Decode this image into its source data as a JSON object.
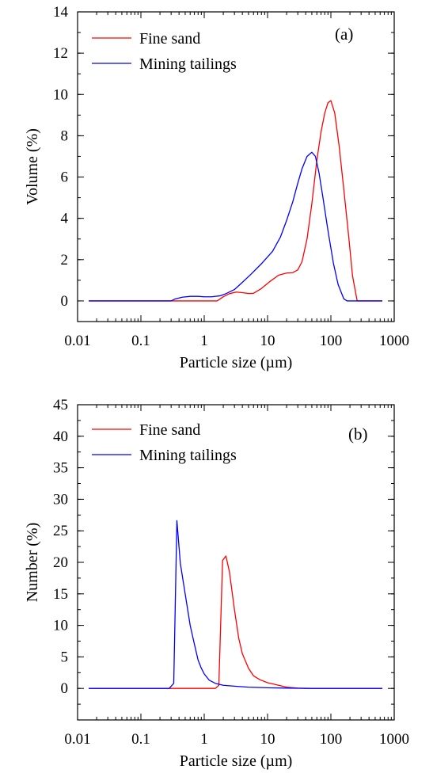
{
  "chart_data": [
    {
      "type": "line",
      "panel_label": "(a)",
      "xlabel": "Particle size (µm)",
      "ylabel": "Volume (%)",
      "x_scale": "log",
      "xlim": [
        0.01,
        1000
      ],
      "ylim": [
        -1,
        14
      ],
      "x_ticks": [
        "0.01",
        "0.1",
        "1",
        "10",
        "100",
        "1000"
      ],
      "y_ticks": [
        "0",
        "2",
        "4",
        "6",
        "8",
        "10",
        "12",
        "14"
      ],
      "legend": "top-left",
      "series": [
        {
          "name": "Fine sand",
          "color": "#ff0000",
          "points": [
            [
              0.015,
              0
            ],
            [
              1.6,
              0
            ],
            [
              2,
              0.2
            ],
            [
              2.5,
              0.35
            ],
            [
              3.2,
              0.43
            ],
            [
              4,
              0.4
            ],
            [
              5,
              0.36
            ],
            [
              6,
              0.37
            ],
            [
              8,
              0.6
            ],
            [
              11,
              0.95
            ],
            [
              15,
              1.25
            ],
            [
              20,
              1.35
            ],
            [
              25,
              1.37
            ],
            [
              30,
              1.5
            ],
            [
              35,
              1.9
            ],
            [
              42,
              3
            ],
            [
              50,
              4.7
            ],
            [
              60,
              6.8
            ],
            [
              70,
              8.2
            ],
            [
              80,
              9.1
            ],
            [
              90,
              9.6
            ],
            [
              100,
              9.7
            ],
            [
              115,
              9.1
            ],
            [
              135,
              7.5
            ],
            [
              160,
              5.4
            ],
            [
              190,
              3.2
            ],
            [
              220,
              1.2
            ],
            [
              260,
              0
            ],
            [
              650,
              0
            ]
          ]
        },
        {
          "name": "Mining tailings",
          "color": "#0000ff",
          "points": [
            [
              0.015,
              0
            ],
            [
              0.3,
              0
            ],
            [
              0.35,
              0.1
            ],
            [
              0.45,
              0.18
            ],
            [
              0.6,
              0.22
            ],
            [
              0.8,
              0.22
            ],
            [
              1,
              0.2
            ],
            [
              1.3,
              0.2
            ],
            [
              1.8,
              0.25
            ],
            [
              2.2,
              0.35
            ],
            [
              3,
              0.55
            ],
            [
              4,
              0.9
            ],
            [
              5.5,
              1.3
            ],
            [
              8,
              1.8
            ],
            [
              12,
              2.4
            ],
            [
              16,
              3.1
            ],
            [
              20,
              3.9
            ],
            [
              25,
              4.8
            ],
            [
              30,
              5.7
            ],
            [
              35,
              6.4
            ],
            [
              42,
              7
            ],
            [
              50,
              7.2
            ],
            [
              57,
              7
            ],
            [
              65,
              6.2
            ],
            [
              75,
              5
            ],
            [
              90,
              3.4
            ],
            [
              110,
              1.8
            ],
            [
              130,
              0.8
            ],
            [
              160,
              0.1
            ],
            [
              180,
              0
            ],
            [
              650,
              0
            ]
          ]
        }
      ]
    },
    {
      "type": "line",
      "panel_label": "(b)",
      "xlabel": "Particle size (µm)",
      "ylabel": "Number (%)",
      "x_scale": "log",
      "xlim": [
        0.01,
        1000
      ],
      "ylim": [
        -5,
        45
      ],
      "x_ticks": [
        "0.01",
        "0.1",
        "1",
        "10",
        "100",
        "1000"
      ],
      "y_ticks": [
        "0",
        "5",
        "10",
        "15",
        "20",
        "25",
        "30",
        "35",
        "40",
        "45"
      ],
      "legend": "top-left",
      "series": [
        {
          "name": "Fine sand",
          "color": "#ff0000",
          "points": [
            [
              0.015,
              0
            ],
            [
              1.5,
              0
            ],
            [
              1.7,
              0.5
            ],
            [
              1.95,
              20.3
            ],
            [
              2.2,
              21
            ],
            [
              2.5,
              18.5
            ],
            [
              3,
              12.5
            ],
            [
              3.5,
              8
            ],
            [
              4,
              5.5
            ],
            [
              5,
              3.2
            ],
            [
              6,
              2
            ],
            [
              7.5,
              1.4
            ],
            [
              10,
              0.9
            ],
            [
              15,
              0.5
            ],
            [
              20,
              0.2
            ],
            [
              30,
              0.05
            ],
            [
              50,
              0
            ],
            [
              650,
              0
            ]
          ]
        },
        {
          "name": "Mining tailings",
          "color": "#0000ff",
          "points": [
            [
              0.015,
              0
            ],
            [
              0.28,
              0
            ],
            [
              0.33,
              0.8
            ],
            [
              0.37,
              26.6
            ],
            [
              0.42,
              19.8
            ],
            [
              0.5,
              15
            ],
            [
              0.6,
              10
            ],
            [
              0.7,
              7
            ],
            [
              0.8,
              4.5
            ],
            [
              0.9,
              3.2
            ],
            [
              1,
              2.3
            ],
            [
              1.2,
              1.3
            ],
            [
              1.5,
              0.8
            ],
            [
              2,
              0.5
            ],
            [
              3,
              0.35
            ],
            [
              5,
              0.2
            ],
            [
              10,
              0.1
            ],
            [
              20,
              0.05
            ],
            [
              40,
              0
            ],
            [
              650,
              0
            ]
          ]
        }
      ]
    }
  ]
}
